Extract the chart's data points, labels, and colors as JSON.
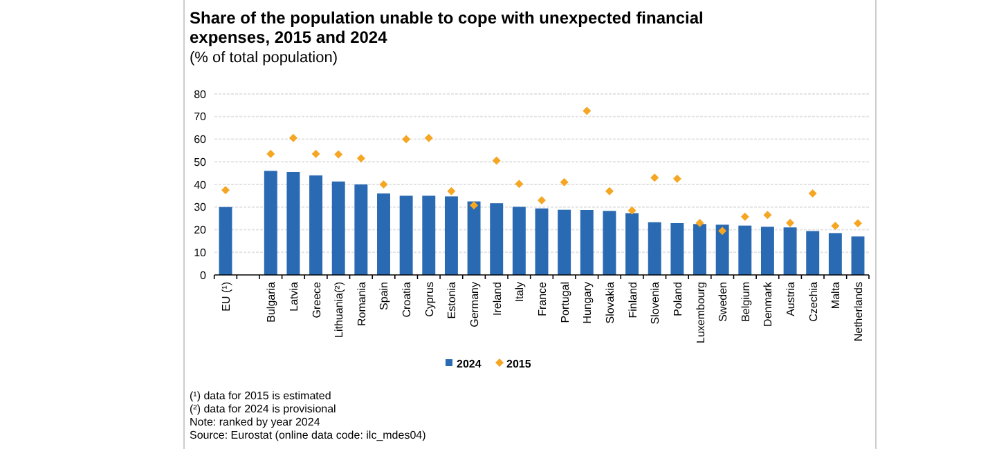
{
  "chart_data": {
    "type": "bar",
    "title": "Share of the population unable to cope with unexpected financial expenses, 2015 and 2024",
    "subtitle": "(% of total population)",
    "categories": [
      "EU (¹)",
      null,
      "Bulgaria",
      "Latvia",
      "Greece",
      "Lithuania(²)",
      "Romania",
      "Spain",
      "Croatia",
      "Cyprus",
      "Estonia",
      "Germany",
      "Ireland",
      "Italy",
      "France",
      "Portugal",
      "Hungary",
      "Slovakia",
      "Finland",
      "Slovenia",
      "Poland",
      "Luxembourg",
      "Sweden",
      "Belgium",
      "Denmark",
      "Austria",
      "Czechia",
      "Malta",
      "Netherlands"
    ],
    "series": [
      {
        "name": "2024",
        "color": "#2a6ab3",
        "values": [
          30,
          null,
          46,
          45.5,
          44,
          41.3,
          40,
          36,
          35,
          35,
          34.7,
          32.5,
          31.7,
          30.1,
          29.4,
          28.8,
          28.7,
          28.3,
          27.3,
          23.3,
          22.9,
          22.5,
          22.2,
          21.8,
          21.3,
          21,
          19.4,
          18.5,
          17
        ]
      },
      {
        "name": "2015",
        "type": "scatter",
        "marker": "diamond",
        "color": "#f5a623",
        "values": [
          37.5,
          null,
          53.5,
          60.5,
          53.5,
          53.3,
          51.5,
          40,
          60,
          60.5,
          37,
          30.8,
          50.5,
          40.2,
          33,
          41,
          72.5,
          37,
          28.5,
          43,
          42.5,
          23,
          19.5,
          25.7,
          26.5,
          23,
          36,
          21.7,
          22.8
        ]
      }
    ],
    "ylim": [
      0,
      80
    ],
    "yticks": [
      0,
      10,
      20,
      30,
      40,
      50,
      60,
      70,
      80
    ],
    "grid": "y",
    "legend": "bottom",
    "annotations": [
      "(¹) data for 2015 is estimated",
      "(²) data for 2024 is provisional",
      "Note: ranked by year 2024",
      "Source: Eurostat (online data code: ilc_mdes04)"
    ]
  }
}
